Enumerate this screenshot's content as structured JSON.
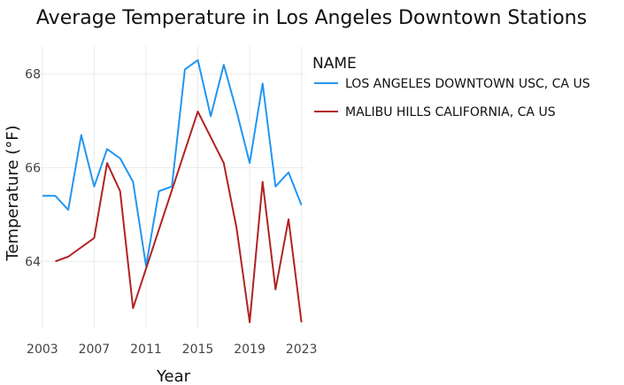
{
  "chart_data": {
    "type": "line",
    "title": "Average Temperature in Los Angeles Downtown Stations",
    "xlabel": "Year",
    "ylabel": "Temperature (°F)",
    "xlim": [
      2002.6,
      2023.3
    ],
    "ylim": [
      62.55,
      68.6
    ],
    "xticks": [
      "2003",
      "2007",
      "2011",
      "2015",
      "2019",
      "2023"
    ],
    "xtick_values": [
      2003,
      2007,
      2011,
      2015,
      2019,
      2023
    ],
    "yticks": [
      "64",
      "66",
      "68"
    ],
    "ytick_values": [
      64,
      66,
      68
    ],
    "grid": true,
    "legend": {
      "title": "NAME",
      "placement": "right"
    },
    "series": [
      {
        "name": "LOS ANGELES DOWNTOWN USC, CA US",
        "color": "#2196f3",
        "x": [
          2003,
          2004,
          2005,
          2006,
          2007,
          2008,
          2009,
          2010,
          2011,
          2012,
          2013,
          2014,
          2015,
          2016,
          2017,
          2018,
          2019,
          2020,
          2021,
          2022,
          2023
        ],
        "y": [
          65.4,
          65.4,
          65.1,
          66.7,
          65.6,
          66.4,
          66.2,
          65.7,
          63.9,
          65.5,
          65.6,
          68.1,
          68.3,
          67.1,
          68.2,
          67.2,
          66.1,
          67.8,
          65.6,
          65.9,
          65.2
        ]
      },
      {
        "name": "MALIBU HILLS CALIFORNIA, CA US",
        "color": "#b22222",
        "x": [
          2004,
          2005,
          2007,
          2008,
          2009,
          2010,
          2015,
          2017,
          2018,
          2019,
          2020,
          2021,
          2022,
          2023
        ],
        "y": [
          64.0,
          64.1,
          64.5,
          66.1,
          65.5,
          63.0,
          67.2,
          66.1,
          64.7,
          62.7,
          65.7,
          63.4,
          64.9,
          62.7
        ]
      }
    ]
  }
}
